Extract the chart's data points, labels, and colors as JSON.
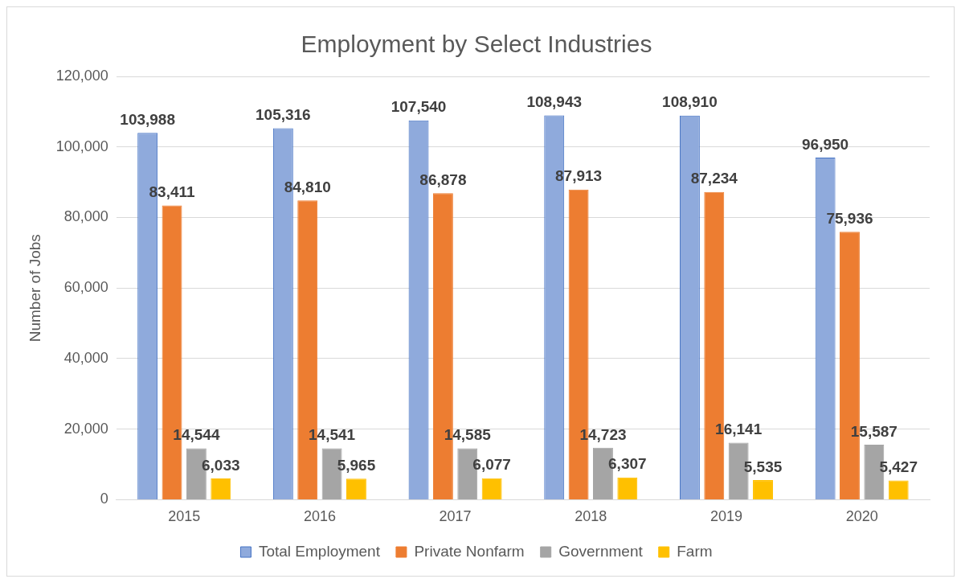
{
  "chart_data": {
    "type": "bar",
    "title": "Employment by Select Industries",
    "ylabel": "Number of Jobs",
    "categories": [
      "2015",
      "2016",
      "2017",
      "2018",
      "2019",
      "2020"
    ],
    "series": [
      {
        "name": "Total Employment",
        "color": "#8faadc",
        "values": [
          103988,
          105316,
          107540,
          108943,
          108910,
          96950
        ],
        "value_labels": [
          "103,988",
          "105,316",
          "107,540",
          "108,943",
          "108,910",
          "96,950"
        ]
      },
      {
        "name": "Private Nonfarm",
        "color": "#ed7d31",
        "values": [
          83411,
          84810,
          86878,
          87913,
          87234,
          75936
        ],
        "value_labels": [
          "83,411",
          "84,810",
          "86,878",
          "87,913",
          "87,234",
          "75,936"
        ]
      },
      {
        "name": "Government",
        "color": "#a5a5a5",
        "values": [
          14544,
          14541,
          14585,
          14723,
          16141,
          15587
        ],
        "value_labels": [
          "14,544",
          "14,541",
          "14,585",
          "14,723",
          "16,141",
          "15,587"
        ]
      },
      {
        "name": "Farm",
        "color": "#ffc000",
        "values": [
          6033,
          5965,
          6077,
          6307,
          5535,
          5427
        ],
        "value_labels": [
          "6,033",
          "5,965",
          "6,077",
          "6,307",
          "5,535",
          "5,427"
        ]
      }
    ],
    "ylim": [
      0,
      120000
    ],
    "yticks": [
      0,
      {
        "value": 20000,
        "label": "20,000"
      },
      {
        "value": 40000,
        "label": "40,000"
      },
      {
        "value": 60000,
        "label": "60,000"
      },
      {
        "value": 80000,
        "label": "80,000"
      },
      {
        "value": 100000,
        "label": "100,000"
      },
      {
        "value": 120000,
        "label": "120,000"
      }
    ],
    "grid": "y",
    "legend": "bottom"
  }
}
